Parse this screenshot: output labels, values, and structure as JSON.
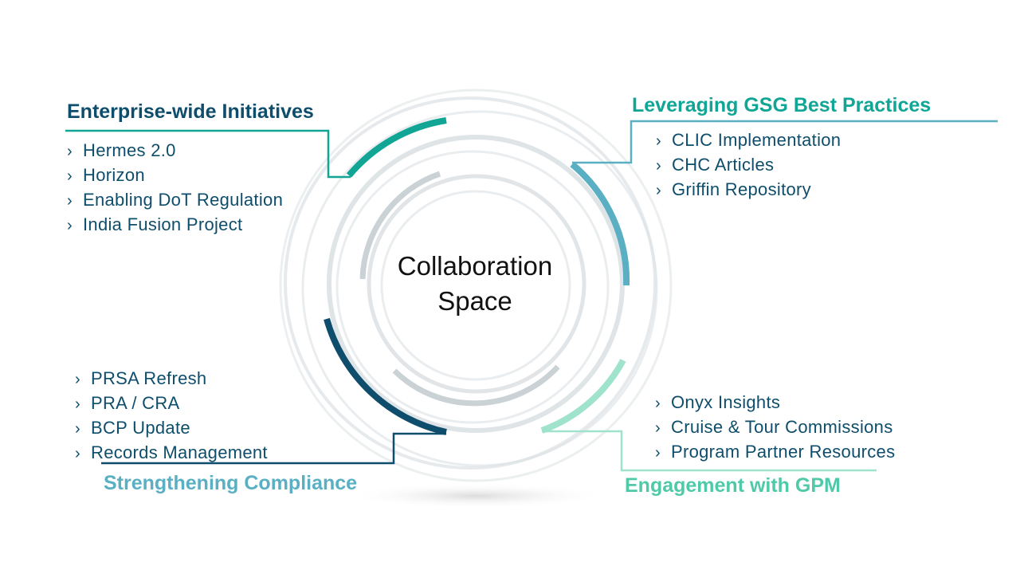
{
  "colors": {
    "enterprise": "#0E4D6B",
    "leveraging": "#10A595",
    "leveraging_arc": "#5AAFC3",
    "engagement": "#4FC9A8",
    "engagement_arc": "#9FE3CC",
    "compliance": "#5AAFC3",
    "compliance_arc": "#0E4D6B",
    "body_text": "#0E4D6B",
    "rings": "#DCE1E4"
  },
  "center": {
    "line1": "Collaboration",
    "line2": "Space"
  },
  "sections": {
    "enterprise": {
      "heading": "Enterprise-wide Initiatives",
      "items": [
        "Hermes 2.0",
        "Horizon",
        "Enabling DoT Regulation",
        "India Fusion Project"
      ]
    },
    "leveraging": {
      "heading": "Leveraging GSG Best Practices",
      "items": [
        "CLIC Implementation",
        "CHC Articles",
        "Griffin Repository"
      ]
    },
    "compliance": {
      "heading": "Strengthening Compliance",
      "items": [
        "PRSA Refresh",
        "PRA / CRA",
        "BCP Update",
        "Records Management"
      ]
    },
    "engagement": {
      "heading": "Engagement with GPM",
      "items": [
        "Onyx Insights",
        "Cruise & Tour Commissions",
        "Program Partner Resources"
      ]
    }
  },
  "bullet_glyph": "›"
}
